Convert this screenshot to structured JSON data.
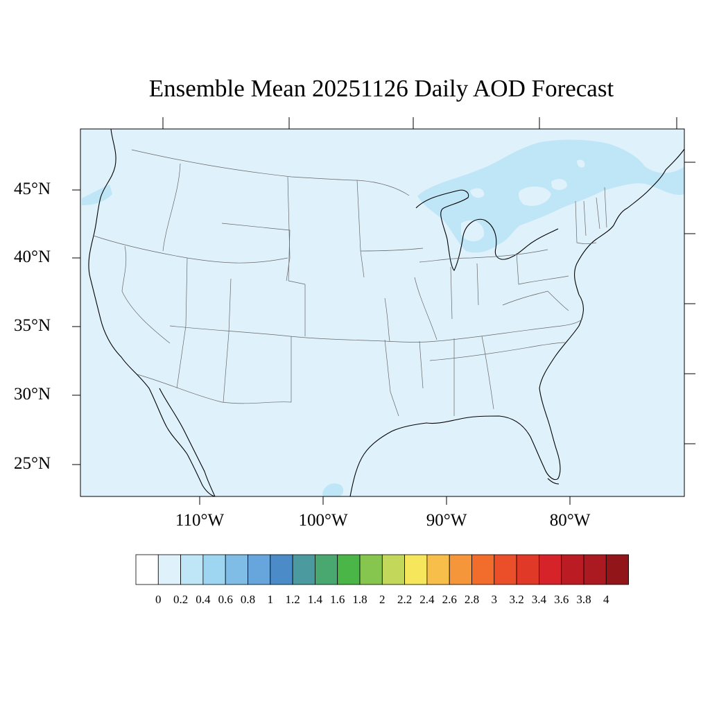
{
  "title": "Ensemble Mean 20251126 Daily AOD Forecast",
  "map": {
    "projection": "lat-lon",
    "lon_range": [
      -119,
      -71
    ],
    "lat_range": [
      22.7,
      49.4
    ],
    "background_aod_color": "#dff1fb",
    "coast_color": "#000000",
    "state_border_color": "#555555"
  },
  "lat_labels": [
    "45°N",
    "40°N",
    "35°N",
    "30°N",
    "25°N"
  ],
  "lon_labels": [
    "110°W",
    "100°W",
    "90°W",
    "80°W"
  ],
  "colorbar": {
    "colors": [
      "#ffffff",
      "#dff1fb",
      "#bee6f7",
      "#9ed6f2",
      "#80bde6",
      "#67a6dc",
      "#4a8bc8",
      "#4a9aa0",
      "#48a870",
      "#4bb648",
      "#86c54e",
      "#c3d75a",
      "#f6e65c",
      "#f8be4a",
      "#f6963b",
      "#f26c2c",
      "#ea4f2a",
      "#e03928",
      "#d6232a",
      "#bb1b23",
      "#aa1a20",
      "#921619"
    ],
    "labels": [
      "0",
      "0.2",
      "0.4",
      "0.6",
      "0.8",
      "1",
      "1.2",
      "1.4",
      "1.6",
      "1.8",
      "2",
      "2.2",
      "2.4",
      "2.6",
      "2.8",
      "3",
      "3.2",
      "3.4",
      "3.6",
      "3.8",
      "4"
    ]
  }
}
